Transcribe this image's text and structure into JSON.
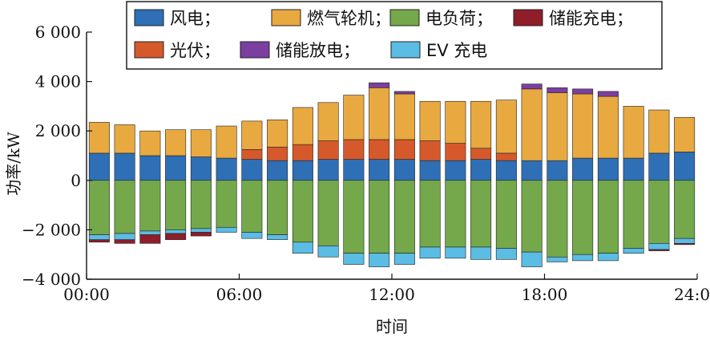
{
  "chart_data": {
    "type": "bar",
    "stacked": true,
    "xlabel": "时间",
    "ylabel": "功率/kW",
    "ylim": [
      -4000,
      6000
    ],
    "xlim": [
      0,
      24
    ],
    "y_ticks": [
      -4000,
      -2000,
      0,
      2000,
      4000,
      6000
    ],
    "y_tick_labels": [
      "−4 000",
      "−2 000",
      "0",
      "2 000",
      "4 000",
      "6 000"
    ],
    "x_ticks": [
      0,
      6,
      12,
      18,
      24
    ],
    "x_tick_labels": [
      "00:00",
      "06:00",
      "12:00",
      "18:00",
      "24:00"
    ],
    "grid": false,
    "legend_position": "top",
    "x": [
      1,
      2,
      3,
      4,
      5,
      6,
      7,
      8,
      9,
      10,
      11,
      12,
      13,
      14,
      15,
      16,
      17,
      18,
      19,
      20,
      21,
      22,
      23,
      24
    ],
    "series": [
      {
        "name": "风电",
        "color": "#2f6fb5",
        "values": [
          1100,
          1100,
          1000,
          1000,
          950,
          900,
          850,
          800,
          800,
          850,
          850,
          850,
          850,
          800,
          800,
          850,
          800,
          800,
          800,
          900,
          900,
          900,
          1100,
          1150
        ]
      },
      {
        "name": "光伏",
        "color": "#d6592b",
        "values": [
          0,
          0,
          0,
          0,
          0,
          0,
          400,
          550,
          650,
          750,
          800,
          800,
          800,
          800,
          700,
          450,
          300,
          0,
          0,
          0,
          0,
          0,
          0,
          0
        ]
      },
      {
        "name": "燃气轮机",
        "color": "#e8a941",
        "values": [
          1250,
          1150,
          1000,
          1050,
          1100,
          1300,
          1150,
          1100,
          1500,
          1550,
          1800,
          2100,
          1850,
          1600,
          1700,
          1900,
          2150,
          2900,
          2750,
          2600,
          2500,
          2100,
          1750,
          1400
        ]
      },
      {
        "name": "储能放电",
        "color": "#7b3fa0",
        "values": [
          0,
          0,
          0,
          0,
          0,
          0,
          0,
          0,
          0,
          0,
          0,
          200,
          100,
          0,
          0,
          0,
          0,
          200,
          200,
          200,
          200,
          0,
          0,
          0
        ]
      },
      {
        "name": "电负荷",
        "color": "#74a84a",
        "values": [
          -2200,
          -2150,
          -2050,
          -2000,
          -1950,
          -1900,
          -2100,
          -2200,
          -2500,
          -2650,
          -2950,
          -2950,
          -2950,
          -2700,
          -2700,
          -2700,
          -2750,
          -2900,
          -3100,
          -3000,
          -2950,
          -2750,
          -2550,
          -2350
        ]
      },
      {
        "name": "EV 充电",
        "color": "#5bbce4",
        "values": [
          -200,
          -250,
          -150,
          -150,
          -150,
          -200,
          -250,
          -200,
          -450,
          -450,
          -450,
          -550,
          -450,
          -450,
          -450,
          -500,
          -450,
          -600,
          -200,
          -250,
          -300,
          -200,
          -250,
          -200
        ]
      },
      {
        "name": "储能充电",
        "color": "#8f1d2a",
        "values": [
          -100,
          -150,
          -350,
          -250,
          -150,
          0,
          0,
          0,
          0,
          0,
          0,
          0,
          0,
          0,
          0,
          0,
          0,
          0,
          0,
          0,
          0,
          0,
          -50,
          -50
        ]
      }
    ]
  },
  "legend": [
    {
      "label": "风电；",
      "color": "#2f6fb5"
    },
    {
      "label": "燃气轮机；",
      "color": "#e8a941"
    },
    {
      "label": "电负荷；",
      "color": "#74a84a"
    },
    {
      "label": "储能充电；",
      "color": "#8f1d2a"
    },
    {
      "label": "光伏；",
      "color": "#d6592b"
    },
    {
      "label": "储能放电；",
      "color": "#7b3fa0"
    },
    {
      "label": "EV 充电",
      "color": "#5bbce4"
    }
  ]
}
